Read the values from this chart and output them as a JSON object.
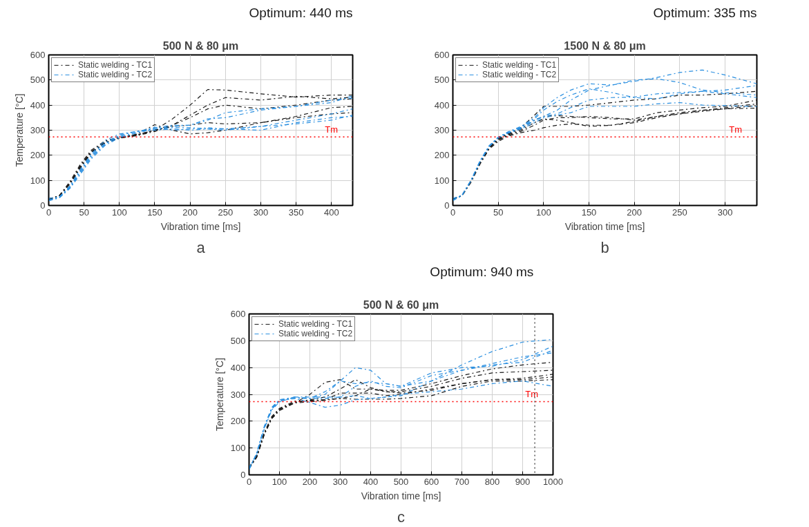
{
  "chart_data": [
    {
      "type": "line",
      "title": "500 N & 80 μm",
      "xlabel": "Vibration time [ms]",
      "ylabel": "Temperature [°C]",
      "x": [
        0,
        15,
        30,
        45,
        60,
        80,
        100,
        125,
        150,
        175,
        200,
        225,
        250,
        300,
        350,
        400,
        430
      ],
      "series": [
        {
          "name": "Static welding - TC1",
          "color": "#1a1a1a",
          "values": [
            24,
            40,
            95,
            165,
            220,
            258,
            272,
            282,
            300,
            345,
            400,
            462,
            460,
            445,
            432,
            440,
            440
          ]
        },
        {
          "color": "#1a1a1a",
          "values": [
            23,
            38,
            90,
            160,
            215,
            255,
            270,
            278,
            295,
            320,
            360,
            400,
            430,
            420,
            435,
            425,
            432
          ]
        },
        {
          "color": "#1a1a1a",
          "values": [
            25,
            38,
            88,
            155,
            212,
            252,
            268,
            280,
            298,
            320,
            350,
            385,
            400,
            385,
            400,
            420,
            425
          ]
        },
        {
          "color": "#1a1a1a",
          "values": [
            26,
            38,
            88,
            155,
            210,
            250,
            268,
            285,
            322,
            300,
            285,
            290,
            300,
            330,
            355,
            390,
            395
          ]
        },
        {
          "color": "#1a1a1a",
          "values": [
            27,
            37,
            85,
            150,
            208,
            250,
            268,
            282,
            300,
            315,
            320,
            330,
            325,
            330,
            350,
            365,
            370
          ]
        },
        {
          "name": "Static welding - TC2",
          "color": "#2a8fe0",
          "values": [
            20,
            33,
            75,
            140,
            200,
            250,
            280,
            295,
            305,
            315,
            320,
            340,
            370,
            385,
            395,
            410,
            437
          ]
        },
        {
          "color": "#2a8fe0",
          "values": [
            21,
            32,
            72,
            135,
            195,
            245,
            280,
            295,
            310,
            320,
            320,
            345,
            350,
            380,
            395,
            420,
            428
          ]
        },
        {
          "color": "#2a8fe0",
          "values": [
            22,
            32,
            70,
            130,
            190,
            245,
            275,
            290,
            305,
            310,
            310,
            305,
            305,
            315,
            340,
            365,
            385
          ]
        },
        {
          "color": "#2a8fe0",
          "values": [
            19,
            30,
            68,
            125,
            185,
            240,
            270,
            290,
            312,
            300,
            305,
            310,
            305,
            300,
            330,
            350,
            355
          ]
        },
        {
          "color": "#2a8fe0",
          "values": [
            28,
            34,
            78,
            145,
            205,
            260,
            285,
            295,
            300,
            305,
            300,
            305,
            300,
            315,
            325,
            340,
            360
          ]
        }
      ],
      "xlim": [
        0,
        430
      ],
      "xticks": [
        0,
        50,
        100,
        150,
        200,
        250,
        300,
        350,
        400
      ],
      "ylim": [
        0,
        600
      ],
      "yticks": [
        0,
        100,
        200,
        300,
        400,
        500,
        600
      ],
      "grid": true,
      "legend": "top left",
      "line_style": "dashed",
      "ref_lines": [
        {
          "axis": "y",
          "value": 273,
          "label": "Tm",
          "color": "#ff0000",
          "line_style": "dotted"
        }
      ],
      "annotations": [
        "Optimum: 440 ms",
        "a"
      ]
    },
    {
      "type": "line",
      "title": "1500 N & 80 μm",
      "xlabel": "Vibration time [ms]",
      "x": [
        0,
        10,
        20,
        30,
        40,
        50,
        60,
        75,
        90,
        100,
        115,
        130,
        150,
        175,
        200,
        225,
        250,
        275,
        300,
        335
      ],
      "series": [
        {
          "name": "Static welding - TC1",
          "color": "#1a1a1a",
          "values": [
            24,
            40,
            100,
            175,
            235,
            268,
            285,
            310,
            360,
            395,
            395,
            395,
            400,
            410,
            420,
            425,
            440,
            440,
            445,
            455
          ]
        },
        {
          "color": "#1a1a1a",
          "values": [
            23,
            40,
            98,
            172,
            232,
            265,
            283,
            305,
            340,
            355,
            358,
            355,
            350,
            345,
            345,
            370,
            380,
            390,
            395,
            420
          ]
        },
        {
          "color": "#1a1a1a",
          "values": [
            25,
            40,
            98,
            170,
            230,
            263,
            280,
            300,
            330,
            345,
            340,
            330,
            315,
            320,
            335,
            355,
            365,
            378,
            390,
            405
          ]
        },
        {
          "color": "#1a1a1a",
          "values": [
            26,
            38,
            95,
            168,
            228,
            260,
            278,
            295,
            320,
            340,
            350,
            350,
            355,
            350,
            340,
            355,
            370,
            380,
            385,
            398
          ]
        },
        {
          "color": "#1a1a1a",
          "values": [
            27,
            38,
            92,
            165,
            225,
            255,
            275,
            290,
            300,
            310,
            320,
            325,
            320,
            320,
            330,
            350,
            365,
            375,
            385,
            388
          ]
        },
        {
          "name": "Static welding - TC2",
          "color": "#2a8fe0",
          "values": [
            20,
            40,
            100,
            178,
            238,
            272,
            292,
            315,
            350,
            390,
            430,
            460,
            485,
            480,
            495,
            510,
            530,
            540,
            520,
            485
          ]
        },
        {
          "color": "#2a8fe0",
          "values": [
            21,
            40,
            100,
            178,
            238,
            272,
            290,
            312,
            345,
            380,
            415,
            440,
            465,
            450,
            430,
            425,
            445,
            455,
            460,
            478
          ]
        },
        {
          "color": "#2a8fe0",
          "values": [
            22,
            40,
            100,
            176,
            236,
            270,
            288,
            310,
            340,
            355,
            380,
            420,
            460,
            480,
            500,
            505,
            490,
            460,
            450,
            440
          ]
        },
        {
          "color": "#2a8fe0",
          "values": [
            28,
            40,
            98,
            175,
            235,
            270,
            288,
            308,
            338,
            355,
            365,
            390,
            420,
            430,
            432,
            445,
            450,
            455,
            445,
            430
          ]
        },
        {
          "color": "#2a8fe0",
          "values": [
            19,
            40,
            98,
            175,
            235,
            270,
            287,
            305,
            330,
            350,
            360,
            370,
            395,
            395,
            395,
            405,
            410,
            400,
            398,
            394
          ]
        }
      ],
      "xlim": [
        0,
        335
      ],
      "xticks": [
        0,
        50,
        100,
        150,
        200,
        250,
        300
      ],
      "ylim": [
        0,
        600
      ],
      "yticks": [
        0,
        100,
        200,
        300,
        400,
        500,
        600
      ],
      "grid": true,
      "legend": "top left",
      "line_style": "dashed",
      "ref_lines": [
        {
          "axis": "y",
          "value": 273,
          "label": "Tm",
          "color": "#ff0000",
          "line_style": "dotted"
        }
      ],
      "annotations": [
        "Optimum: 335 ms",
        "b"
      ]
    },
    {
      "type": "line",
      "title": "500 N & 60 μm",
      "xlabel": "Vibration time [ms]",
      "ylabel": "Temperature [°C]",
      "x": [
        0,
        25,
        50,
        75,
        100,
        150,
        200,
        250,
        300,
        350,
        400,
        450,
        500,
        600,
        700,
        800,
        900,
        1000
      ],
      "series": [
        {
          "name": "Static welding - TC1",
          "color": "#1a1a1a",
          "values": [
            24,
            65,
            150,
            210,
            240,
            268,
            300,
            345,
            355,
            320,
            320,
            315,
            315,
            340,
            370,
            395,
            410,
            420
          ]
        },
        {
          "color": "#1a1a1a",
          "values": [
            23,
            65,
            150,
            210,
            240,
            270,
            280,
            290,
            320,
            355,
            325,
            310,
            310,
            330,
            360,
            380,
            385,
            390
          ]
        },
        {
          "color": "#1a1a1a",
          "values": [
            25,
            68,
            155,
            215,
            245,
            272,
            278,
            280,
            305,
            305,
            305,
            295,
            300,
            320,
            340,
            355,
            360,
            375
          ]
        },
        {
          "color": "#1a1a1a",
          "values": [
            26,
            68,
            155,
            215,
            245,
            268,
            272,
            278,
            285,
            295,
            320,
            310,
            305,
            315,
            340,
            355,
            355,
            365
          ]
        },
        {
          "color": "#1a1a1a",
          "values": [
            27,
            70,
            158,
            218,
            248,
            275,
            275,
            280,
            285,
            282,
            282,
            282,
            285,
            295,
            330,
            350,
            350,
            355
          ]
        },
        {
          "name": "Static welding - TC2",
          "color": "#2a8fe0",
          "values": [
            20,
            80,
            180,
            250,
            275,
            290,
            285,
            300,
            350,
            400,
            390,
            340,
            330,
            350,
            390,
            410,
            420,
            465
          ]
        },
        {
          "color": "#2a8fe0",
          "values": [
            21,
            80,
            180,
            252,
            280,
            285,
            270,
            252,
            260,
            280,
            285,
            290,
            295,
            350,
            410,
            460,
            495,
            505
          ]
        },
        {
          "color": "#2a8fe0",
          "values": [
            22,
            78,
            178,
            248,
            280,
            290,
            285,
            310,
            350,
            340,
            345,
            340,
            330,
            380,
            400,
            405,
            430,
            480
          ]
        },
        {
          "color": "#2a8fe0",
          "values": [
            19,
            78,
            175,
            245,
            275,
            285,
            285,
            285,
            290,
            330,
            350,
            330,
            325,
            370,
            390,
            415,
            440,
            455
          ]
        },
        {
          "color": "#2a8fe0",
          "values": [
            28,
            76,
            172,
            242,
            272,
            290,
            290,
            290,
            290,
            295,
            285,
            290,
            300,
            310,
            320,
            340,
            350,
            330
          ]
        }
      ],
      "xlim": [
        0,
        1000
      ],
      "xticks": [
        0,
        100,
        200,
        300,
        400,
        500,
        600,
        700,
        800,
        900,
        1000
      ],
      "ylim": [
        0,
        600
      ],
      "yticks": [
        0,
        100,
        200,
        300,
        400,
        500,
        600
      ],
      "grid": true,
      "legend": "top left",
      "line_style": "dashed",
      "ref_lines": [
        {
          "axis": "y",
          "value": 273,
          "label": "Tm",
          "color": "#ff0000",
          "line_style": "dotted"
        },
        {
          "axis": "x",
          "value": 940,
          "label": null,
          "color": "#555555",
          "line_style": "dotted"
        }
      ],
      "annotations": [
        "Optimum: 940 ms",
        "c"
      ]
    }
  ]
}
